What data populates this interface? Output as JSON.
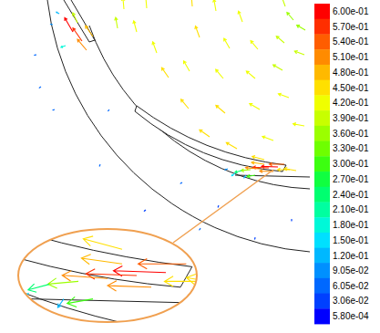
{
  "chart_data": {
    "type": "vector",
    "xlim": [
      0,
      340
    ],
    "ylim": [
      0,
      365
    ],
    "tick_labels": false,
    "vectors": {
      "x": [
        335,
        322,
        313,
        310,
        283,
        266,
        334,
        285,
        245,
        219,
        211,
        325,
        260,
        207,
        172,
        161,
        129,
        300,
        247,
        208,
        317,
        280,
        252,
        237,
        312,
        334,
        136,
        150,
        185,
        230,
        290,
        90,
        80,
        95,
        102,
        85,
        65,
        72,
        58,
        305,
        295,
        285,
        312,
        300,
        290,
        275,
        265,
        258,
        270,
        250,
        280,
        318,
        60,
        110,
        160,
        220,
        280,
        40,
        120,
        200,
        240,
        320,
        45
      ],
      "y": [
        332,
        343,
        358,
        288,
        311,
        341,
        227,
        245,
        279,
        324,
        358,
        178,
        202,
        246,
        307,
        356,
        334,
        211,
        241,
        287,
        258,
        279,
        312,
        353,
        318,
        305,
        355,
        330,
        280,
        215,
        190,
        320,
        330,
        310,
        325,
        340,
        350,
        315,
        338,
        182,
        181,
        180,
        185,
        177,
        185,
        179,
        178,
        175,
        173,
        180,
        173,
        179,
        245,
        185,
        135,
        115,
        105,
        305,
        245,
        165,
        140,
        125,
        270
      ],
      "values": [
        0.36,
        0.37,
        0.38,
        0.4,
        0.41,
        0.42,
        0.42,
        0.43,
        0.43,
        0.44,
        0.44,
        0.44,
        0.45,
        0.44,
        0.43,
        0.42,
        0.4,
        0.43,
        0.44,
        0.43,
        0.41,
        0.42,
        0.42,
        0.43,
        0.38,
        0.38,
        0.41,
        0.42,
        0.44,
        0.45,
        0.46,
        0.58,
        0.6,
        0.52,
        0.48,
        0.4,
        0.12,
        0.18,
        0.08,
        0.6,
        0.58,
        0.52,
        0.55,
        0.5,
        0.47,
        0.35,
        0.25,
        0.15,
        0.12,
        0.1,
        0.3,
        0.45,
        0.05,
        0.06,
        0.04,
        0.05,
        0.04,
        0.07,
        0.06,
        0.05,
        0.04,
        0.03,
        0.05
      ],
      "direction": [
        150,
        130,
        110,
        150,
        130,
        110,
        170,
        150,
        130,
        110,
        95,
        170,
        150,
        130,
        110,
        95,
        100,
        160,
        140,
        120,
        160,
        140,
        120,
        100,
        140,
        160,
        95,
        105,
        125,
        145,
        165,
        125,
        120,
        130,
        125,
        115,
        150,
        200,
        170,
        178,
        178,
        176,
        180,
        178,
        172,
        185,
        195,
        215,
        235,
        200,
        190,
        180,
        200,
        250,
        220,
        240,
        260,
        190,
        230,
        210,
        250,
        270,
        215
      ]
    },
    "colorbar": {
      "range": [
        0.00058,
        0.6
      ],
      "ticks": [
        {
          "value": 0.6,
          "label": "6.00e-01"
        },
        {
          "value": 0.57,
          "label": "5.70e-01"
        },
        {
          "value": 0.54,
          "label": "5.40e-01"
        },
        {
          "value": 0.51,
          "label": "5.10e-01"
        },
        {
          "value": 0.48,
          "label": "4.80e-01"
        },
        {
          "value": 0.45,
          "label": "4.50e-01"
        },
        {
          "value": 0.42,
          "label": "4.20e-01"
        },
        {
          "value": 0.39,
          "label": "3.90e-01"
        },
        {
          "value": 0.36,
          "label": "3.60e-01"
        },
        {
          "value": 0.33,
          "label": "3.30e-01"
        },
        {
          "value": 0.3,
          "label": "3.00e-01"
        },
        {
          "value": 0.27,
          "label": "2.70e-01"
        },
        {
          "value": 0.24,
          "label": "2.40e-01"
        },
        {
          "value": 0.21,
          "label": "2.10e-01"
        },
        {
          "value": 0.18,
          "label": "1.80e-01"
        },
        {
          "value": 0.15,
          "label": "1.50e-01"
        },
        {
          "value": 0.12,
          "label": "1.20e-01"
        },
        {
          "value": 0.0905,
          "label": "9.05e-02"
        },
        {
          "value": 0.0605,
          "label": "6.05e-02"
        },
        {
          "value": 0.0306,
          "label": "3.06e-02"
        },
        {
          "value": 0.00058,
          "label": "5.80e-04"
        }
      ],
      "colors": [
        "#ff0000",
        "#ff2e00",
        "#ff5d00",
        "#ff8b00",
        "#ffb900",
        "#ffe000",
        "#f0ff00",
        "#c8ff00",
        "#9bff00",
        "#6eff00",
        "#3cff10",
        "#10ff40",
        "#00ff70",
        "#00ffa0",
        "#00f8d8",
        "#00e0ff",
        "#00b8ff",
        "#0090ff",
        "#0068ff",
        "#0040ff",
        "#0000ff"
      ]
    }
  }
}
